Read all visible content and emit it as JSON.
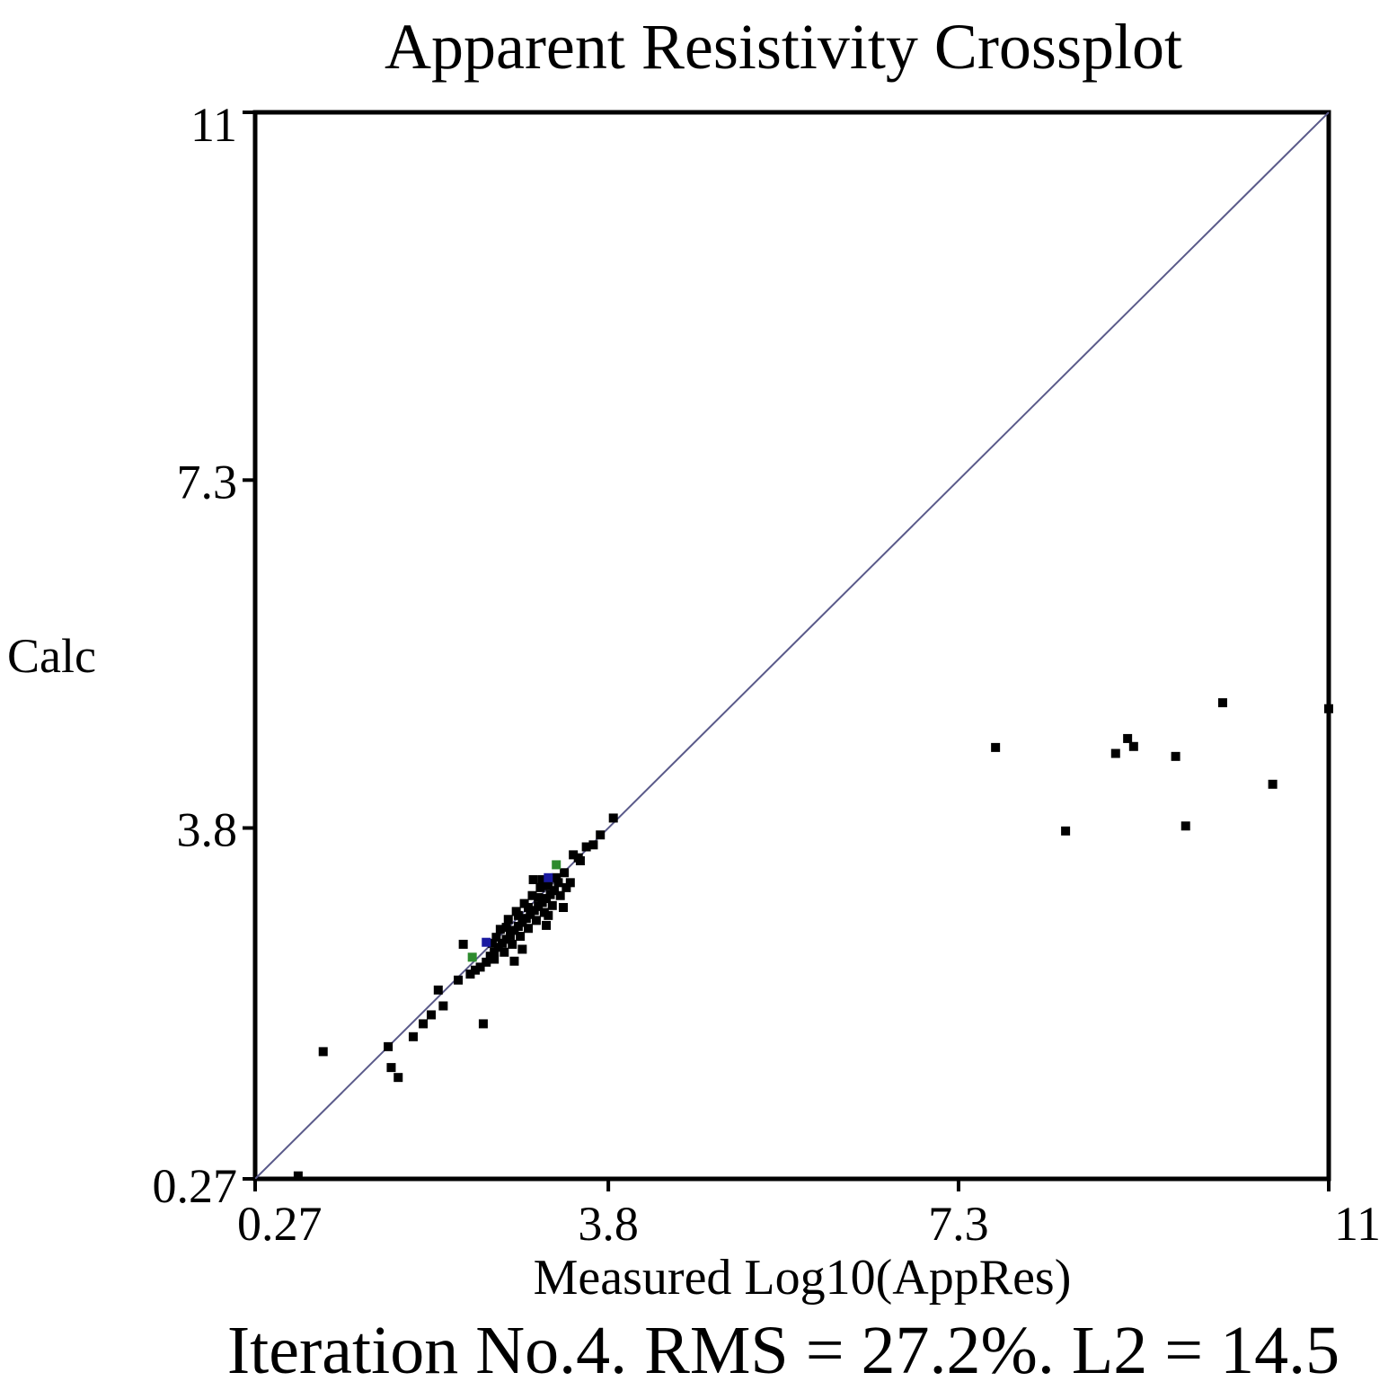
{
  "chart_data": {
    "type": "scatter",
    "title": "Apparent Resistivity Crossplot",
    "xlabel": "Measured Log10(AppRes)",
    "ylabel": "Calc",
    "footer": "Iteration No.4. RMS = 27.2%. L2 = 14.5",
    "xlim": [
      0.27,
      11
    ],
    "ylim": [
      0.27,
      11
    ],
    "x_ticks": [
      "0.27",
      "3.8",
      "7.3",
      "11"
    ],
    "y_ticks": [
      "0.27",
      "3.8",
      "7.3",
      "11"
    ],
    "x_tick_values": [
      0.27,
      3.8,
      7.3,
      11
    ],
    "y_tick_values": [
      0.27,
      3.8,
      7.3,
      11
    ],
    "reference_line": {
      "from": [
        0.27,
        0.27
      ],
      "to": [
        11,
        11
      ],
      "color": "#5a5a8a"
    },
    "point_color": "#000000",
    "highlight_colors": [
      "#2e8b2e",
      "#1a1aa0"
    ],
    "points": [
      [
        0.7,
        0.3
      ],
      [
        0.95,
        1.55
      ],
      [
        1.6,
        1.6
      ],
      [
        1.63,
        1.39
      ],
      [
        1.7,
        1.29
      ],
      [
        1.85,
        1.7
      ],
      [
        1.95,
        1.83
      ],
      [
        2.03,
        1.92
      ],
      [
        2.1,
        2.17
      ],
      [
        2.15,
        2.01
      ],
      [
        2.3,
        2.27
      ],
      [
        2.35,
        2.63
      ],
      [
        2.42,
        2.33
      ],
      [
        2.47,
        2.37
      ],
      [
        2.52,
        2.4
      ],
      [
        2.55,
        1.83
      ],
      [
        2.58,
        2.45
      ],
      [
        2.62,
        2.51
      ],
      [
        2.66,
        2.55
      ],
      [
        2.7,
        2.6
      ],
      [
        2.74,
        2.64
      ],
      [
        2.78,
        2.68
      ],
      [
        2.82,
        2.72
      ],
      [
        2.86,
        2.77
      ],
      [
        2.9,
        2.81
      ],
      [
        2.94,
        2.85
      ],
      [
        2.98,
        2.89
      ],
      [
        3.02,
        2.93
      ],
      [
        3.06,
        2.97
      ],
      [
        3.1,
        3.01
      ],
      [
        3.14,
        3.05
      ],
      [
        3.18,
        3.09
      ],
      [
        3.22,
        3.13
      ],
      [
        3.26,
        3.17
      ],
      [
        2.72,
        2.78
      ],
      [
        2.8,
        2.88
      ],
      [
        2.88,
        2.96
      ],
      [
        2.96,
        3.04
      ],
      [
        3.04,
        3.12
      ],
      [
        3.12,
        3.2
      ],
      [
        2.76,
        2.55
      ],
      [
        2.84,
        2.63
      ],
      [
        2.92,
        2.71
      ],
      [
        3.0,
        2.79
      ],
      [
        3.08,
        2.87
      ],
      [
        3.16,
        2.95
      ],
      [
        3.24,
        3.02
      ],
      [
        2.68,
        2.7
      ],
      [
        2.78,
        2.8
      ],
      [
        2.9,
        2.92
      ],
      [
        3.0,
        3.0
      ],
      [
        3.1,
        3.1
      ],
      [
        3.2,
        3.22
      ],
      [
        3.3,
        3.25
      ],
      [
        3.32,
        3.12
      ],
      [
        3.36,
        3.35
      ],
      [
        3.42,
        3.25
      ],
      [
        3.45,
        3.53
      ],
      [
        3.52,
        3.47
      ],
      [
        3.58,
        3.61
      ],
      [
        3.65,
        3.63
      ],
      [
        3.72,
        3.73
      ],
      [
        3.85,
        3.9
      ],
      [
        2.66,
        2.48
      ],
      [
        2.94,
        2.58
      ],
      [
        3.05,
        3.28
      ],
      [
        3.2,
        2.92
      ],
      [
        3.35,
        3.0
      ],
      [
        3.5,
        3.5
      ],
      [
        3.38,
        3.2
      ],
      [
        3.28,
        3.3
      ],
      [
        3.14,
        3.28
      ],
      [
        2.86,
        2.46
      ],
      [
        2.64,
        2.64
      ],
      [
        3.18,
        2.82
      ],
      [
        7.67,
        4.61
      ],
      [
        8.37,
        3.77
      ],
      [
        8.87,
        4.55
      ],
      [
        8.99,
        4.7
      ],
      [
        9.05,
        4.62
      ],
      [
        9.47,
        4.52
      ],
      [
        9.57,
        3.82
      ],
      [
        9.94,
        5.06
      ],
      [
        10.44,
        4.24
      ],
      [
        11.0,
        5.0
      ]
    ],
    "highlight_points": [
      [
        3.28,
        3.43,
        0
      ],
      [
        2.44,
        2.5,
        0
      ],
      [
        2.58,
        2.65,
        1
      ],
      [
        3.2,
        3.3,
        1
      ]
    ]
  }
}
